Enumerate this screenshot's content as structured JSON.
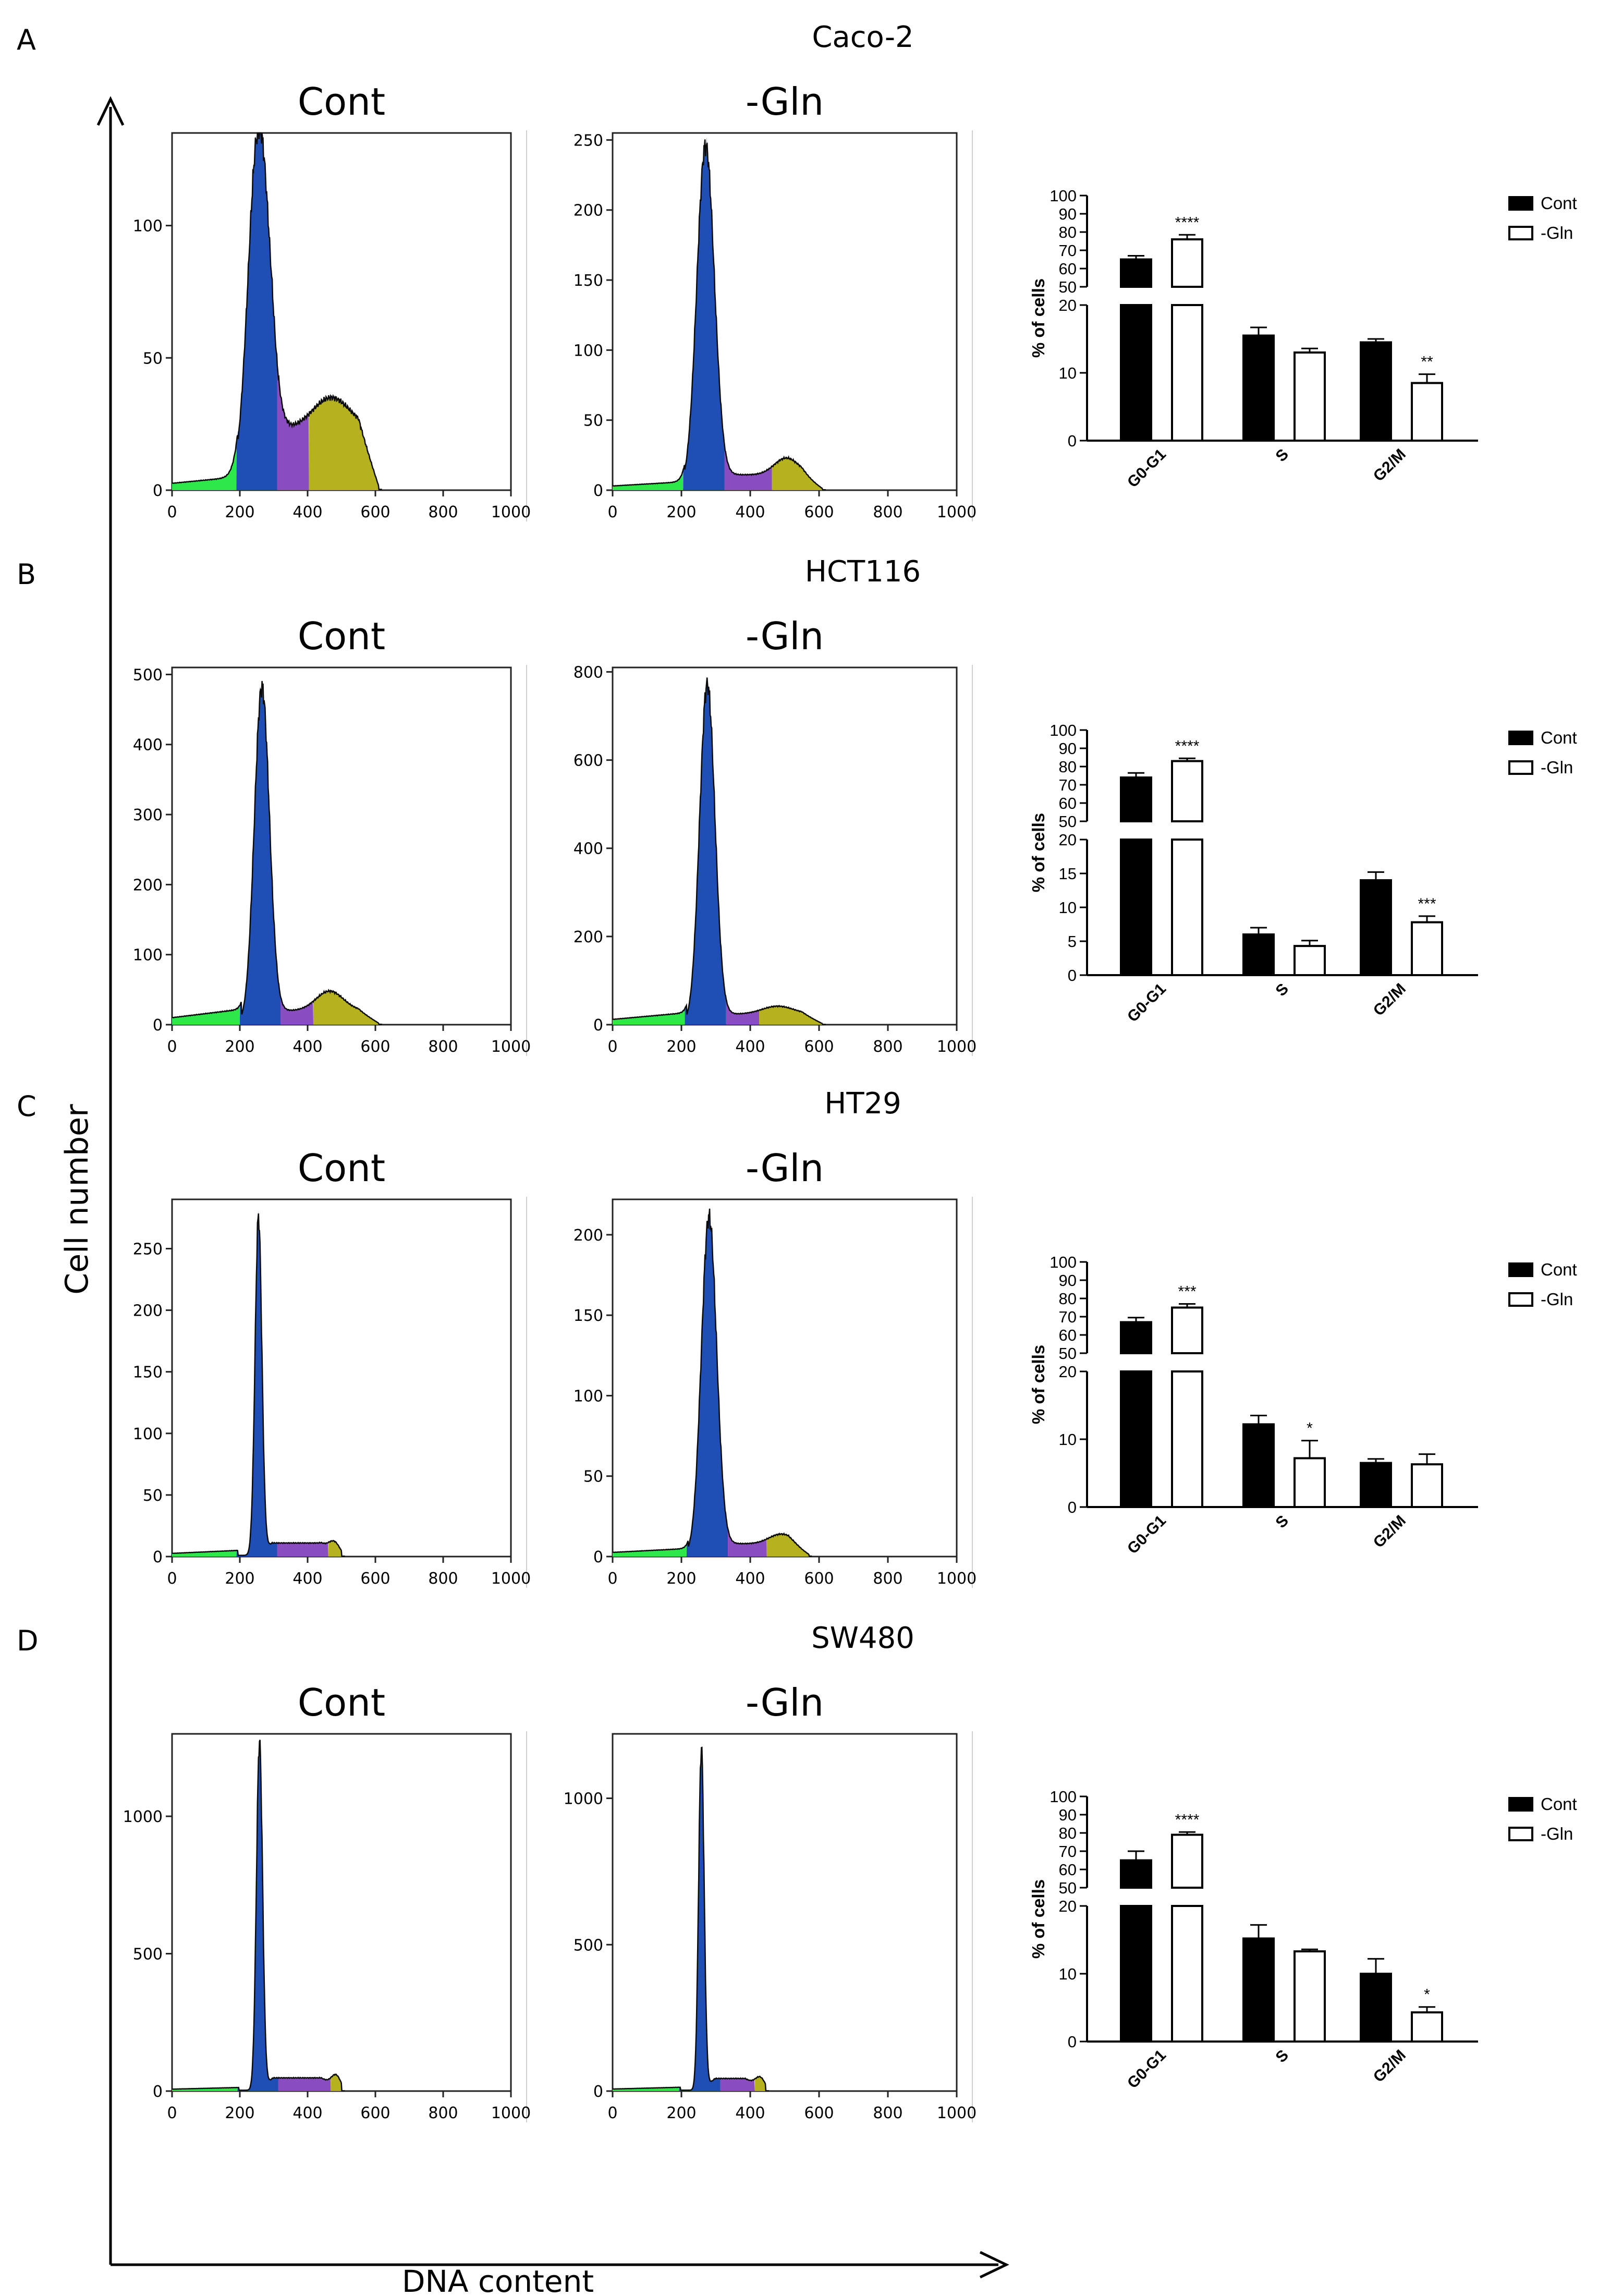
{
  "figure": {
    "x_axis_label": "DNA content",
    "y_axis_label": "Cell number",
    "colors": {
      "line": "#0b0b0b",
      "g1": "#1f4fb4",
      "sub_g1": "#2ee84a",
      "s": "#8a4dc0",
      "g2m": "#b5b11f",
      "bar_cont": "#000000",
      "bar_gln": "#ffffff"
    }
  },
  "panels": [
    {
      "letter": "A",
      "title": "Caco-2",
      "histograms": [
        {
          "label": "Cont",
          "x_ticks": [
            "0",
            "200",
            "400",
            "600",
            "800",
            "1000"
          ],
          "y_ticks": [
            "0",
            "50",
            "100"
          ],
          "ylim": [
            0,
            135
          ],
          "profile": {
            "base": 1,
            "sub_g1": 4,
            "g1_center": 255,
            "g1_peak": 135,
            "g1_width": 30,
            "s_level": 22,
            "g2_center": 470,
            "g2_peak": 12,
            "g2_width": 55,
            "end": 610
          }
        },
        {
          "label": "-Gln",
          "x_ticks": [
            "0",
            "200",
            "400",
            "600",
            "800",
            "1000"
          ],
          "y_ticks": [
            "0",
            "50",
            "100",
            "150",
            "200",
            "250"
          ],
          "ylim": [
            0,
            255
          ],
          "profile": {
            "base": 1,
            "sub_g1": 5,
            "g1_center": 270,
            "g1_peak": 245,
            "g1_width": 25,
            "s_level": 10,
            "g2_center": 505,
            "g2_peak": 12,
            "g2_width": 35,
            "end": 610
          }
        }
      ],
      "bar_chart": {
        "type": "bar",
        "categories": [
          "G0-G1",
          "S",
          "G2/M"
        ],
        "y_ticks_lower": [
          "0",
          "10",
          "20"
        ],
        "y_ticks_upper": [
          "50",
          "60",
          "70",
          "80",
          "90",
          "100"
        ],
        "ylabel": "% of cells",
        "series": [
          {
            "name": "Cont",
            "values": [
              65,
              15.5,
              14.5
            ],
            "errors": [
              2,
              1.2,
              0.5
            ]
          },
          {
            "name": "-Gln",
            "values": [
              76,
              13,
              8.5
            ],
            "errors": [
              2.5,
              0.6,
              1.3
            ]
          }
        ],
        "significance": [
          "****",
          "",
          "**"
        ]
      }
    },
    {
      "letter": "B",
      "title": "HCT116",
      "histograms": [
        {
          "label": "Cont",
          "x_ticks": [
            "0",
            "200",
            "400",
            "600",
            "800",
            "1000"
          ],
          "y_ticks": [
            "0",
            "100",
            "200",
            "300",
            "400",
            "500"
          ],
          "ylim": [
            0,
            510
          ],
          "profile": {
            "base": 2,
            "sub_g1": 20,
            "g1_center": 265,
            "g1_peak": 480,
            "g1_width": 22,
            "s_level": 18,
            "g2_center": 465,
            "g2_peak": 28,
            "g2_width": 40,
            "end": 610
          }
        },
        {
          "label": "-Gln",
          "x_ticks": [
            "0",
            "200",
            "400",
            "600",
            "800",
            "1000"
          ],
          "y_ticks": [
            "0",
            "200",
            "400",
            "600",
            "800"
          ],
          "ylim": [
            0,
            810
          ],
          "profile": {
            "base": 2,
            "sub_g1": 25,
            "g1_center": 275,
            "g1_peak": 770,
            "g1_width": 22,
            "s_level": 22,
            "g2_center": 480,
            "g2_peak": 18,
            "g2_width": 45,
            "end": 610
          }
        }
      ],
      "bar_chart": {
        "type": "bar",
        "categories": [
          "G0-G1",
          "S",
          "G2/M"
        ],
        "y_ticks_lower": [
          "0",
          "5",
          "10",
          "15",
          "20"
        ],
        "y_ticks_upper": [
          "50",
          "60",
          "70",
          "80",
          "90",
          "100"
        ],
        "ylabel": "% of cells",
        "series": [
          {
            "name": "Cont",
            "values": [
              74,
              6,
              14
            ],
            "errors": [
              2.5,
              1,
              1.2
            ]
          },
          {
            "name": "-Gln",
            "values": [
              83,
              4.3,
              7.8
            ],
            "errors": [
              1.5,
              0.8,
              0.9
            ]
          }
        ],
        "significance": [
          "****",
          "",
          "***"
        ]
      }
    },
    {
      "letter": "C",
      "title": "HT29",
      "histograms": [
        {
          "label": "Cont",
          "x_ticks": [
            "0",
            "200",
            "400",
            "600",
            "800",
            "1000"
          ],
          "y_ticks": [
            "0",
            "50",
            "100",
            "150",
            "200",
            "250"
          ],
          "ylim": [
            0,
            290
          ],
          "profile": {
            "base": 1,
            "sub_g1": 4,
            "g1_center": 255,
            "g1_peak": 275,
            "g1_width": 10,
            "s_level": 10,
            "g2_center": 480,
            "g2_peak": 8,
            "g2_width": 16,
            "end": 500
          }
        },
        {
          "label": "-Gln",
          "x_ticks": [
            "0",
            "200",
            "400",
            "600",
            "800",
            "1000"
          ],
          "y_ticks": [
            "0",
            "50",
            "100",
            "150",
            "200"
          ],
          "ylim": [
            0,
            222
          ],
          "profile": {
            "base": 1,
            "sub_g1": 4,
            "g1_center": 280,
            "g1_peak": 210,
            "g1_width": 22,
            "s_level": 7,
            "g2_center": 490,
            "g2_peak": 6,
            "g2_width": 35,
            "end": 570
          }
        }
      ],
      "bar_chart": {
        "type": "bar",
        "categories": [
          "G0-G1",
          "S",
          "G2/M"
        ],
        "y_ticks_lower": [
          "0",
          "10",
          "20"
        ],
        "y_ticks_upper": [
          "50",
          "60",
          "70",
          "80",
          "90",
          "100"
        ],
        "ylabel": "% of cells",
        "series": [
          {
            "name": "Cont",
            "values": [
              67,
              12.2,
              6.5
            ],
            "errors": [
              2.5,
              1.3,
              0.6
            ]
          },
          {
            "name": "-Gln",
            "values": [
              75,
              7.2,
              6.3
            ],
            "errors": [
              2,
              2.6,
              1.5
            ]
          }
        ],
        "significance": [
          "***",
          "*",
          ""
        ]
      }
    },
    {
      "letter": "D",
      "title": "SW480",
      "histograms": [
        {
          "label": "Cont",
          "x_ticks": [
            "0",
            "200",
            "400",
            "600",
            "800",
            "1000"
          ],
          "y_ticks": [
            "0",
            "500",
            "1000"
          ],
          "ylim": [
            0,
            1300
          ],
          "profile": {
            "base": 3,
            "sub_g1": 10,
            "g1_center": 258,
            "g1_peak": 1270,
            "g1_width": 9,
            "s_level": 45,
            "g2_center": 485,
            "g2_peak": 45,
            "g2_width": 14,
            "end": 500
          }
        },
        {
          "label": "-Gln",
          "x_ticks": [
            "0",
            "200",
            "400",
            "600",
            "800",
            "1000"
          ],
          "y_ticks": [
            "0",
            "500",
            "1000"
          ],
          "ylim": [
            0,
            1220
          ],
          "profile": {
            "base": 3,
            "sub_g1": 10,
            "g1_center": 258,
            "g1_peak": 1170,
            "g1_width": 8,
            "s_level": 40,
            "g2_center": 430,
            "g2_peak": 35,
            "g2_width": 14,
            "end": 445
          }
        }
      ],
      "bar_chart": {
        "type": "bar",
        "categories": [
          "G0-G1",
          "S",
          "G2/M"
        ],
        "y_ticks_lower": [
          "0",
          "10",
          "20"
        ],
        "y_ticks_upper": [
          "50",
          "60",
          "70",
          "80",
          "90",
          "100"
        ],
        "ylabel": "% of cells",
        "series": [
          {
            "name": "Cont",
            "values": [
              65,
              15.2,
              10
            ],
            "errors": [
              5,
              2,
              2.2
            ]
          },
          {
            "name": "-Gln",
            "values": [
              79,
              13.3,
              4.3
            ],
            "errors": [
              1.5,
              0.3,
              0.8
            ]
          }
        ],
        "significance": [
          "****",
          "",
          "*"
        ]
      }
    }
  ],
  "chart_data": [
    {
      "type": "bar",
      "title": "Caco-2",
      "categories": [
        "G0-G1",
        "S",
        "G2/M"
      ],
      "ylabel": "% of cells",
      "series": [
        {
          "name": "Cont",
          "values": [
            65,
            15.5,
            14.5
          ]
        },
        {
          "name": "-Gln",
          "values": [
            76,
            13,
            8.5
          ]
        }
      ]
    },
    {
      "type": "bar",
      "title": "HCT116",
      "categories": [
        "G0-G1",
        "S",
        "G2/M"
      ],
      "ylabel": "% of cells",
      "series": [
        {
          "name": "Cont",
          "values": [
            74,
            6,
            14
          ]
        },
        {
          "name": "-Gln",
          "values": [
            83,
            4.3,
            7.8
          ]
        }
      ]
    },
    {
      "type": "bar",
      "title": "HT29",
      "categories": [
        "G0-G1",
        "S",
        "G2/M"
      ],
      "ylabel": "% of cells",
      "series": [
        {
          "name": "Cont",
          "values": [
            67,
            12.2,
            6.5
          ]
        },
        {
          "name": "-Gln",
          "values": [
            75,
            7.2,
            6.3
          ]
        }
      ]
    },
    {
      "type": "bar",
      "title": "SW480",
      "categories": [
        "G0-G1",
        "S",
        "G2/M"
      ],
      "ylabel": "% of cells",
      "series": [
        {
          "name": "Cont",
          "values": [
            65,
            15.2,
            10
          ]
        },
        {
          "name": "-Gln",
          "values": [
            79,
            13.3,
            4.3
          ]
        }
      ]
    }
  ]
}
